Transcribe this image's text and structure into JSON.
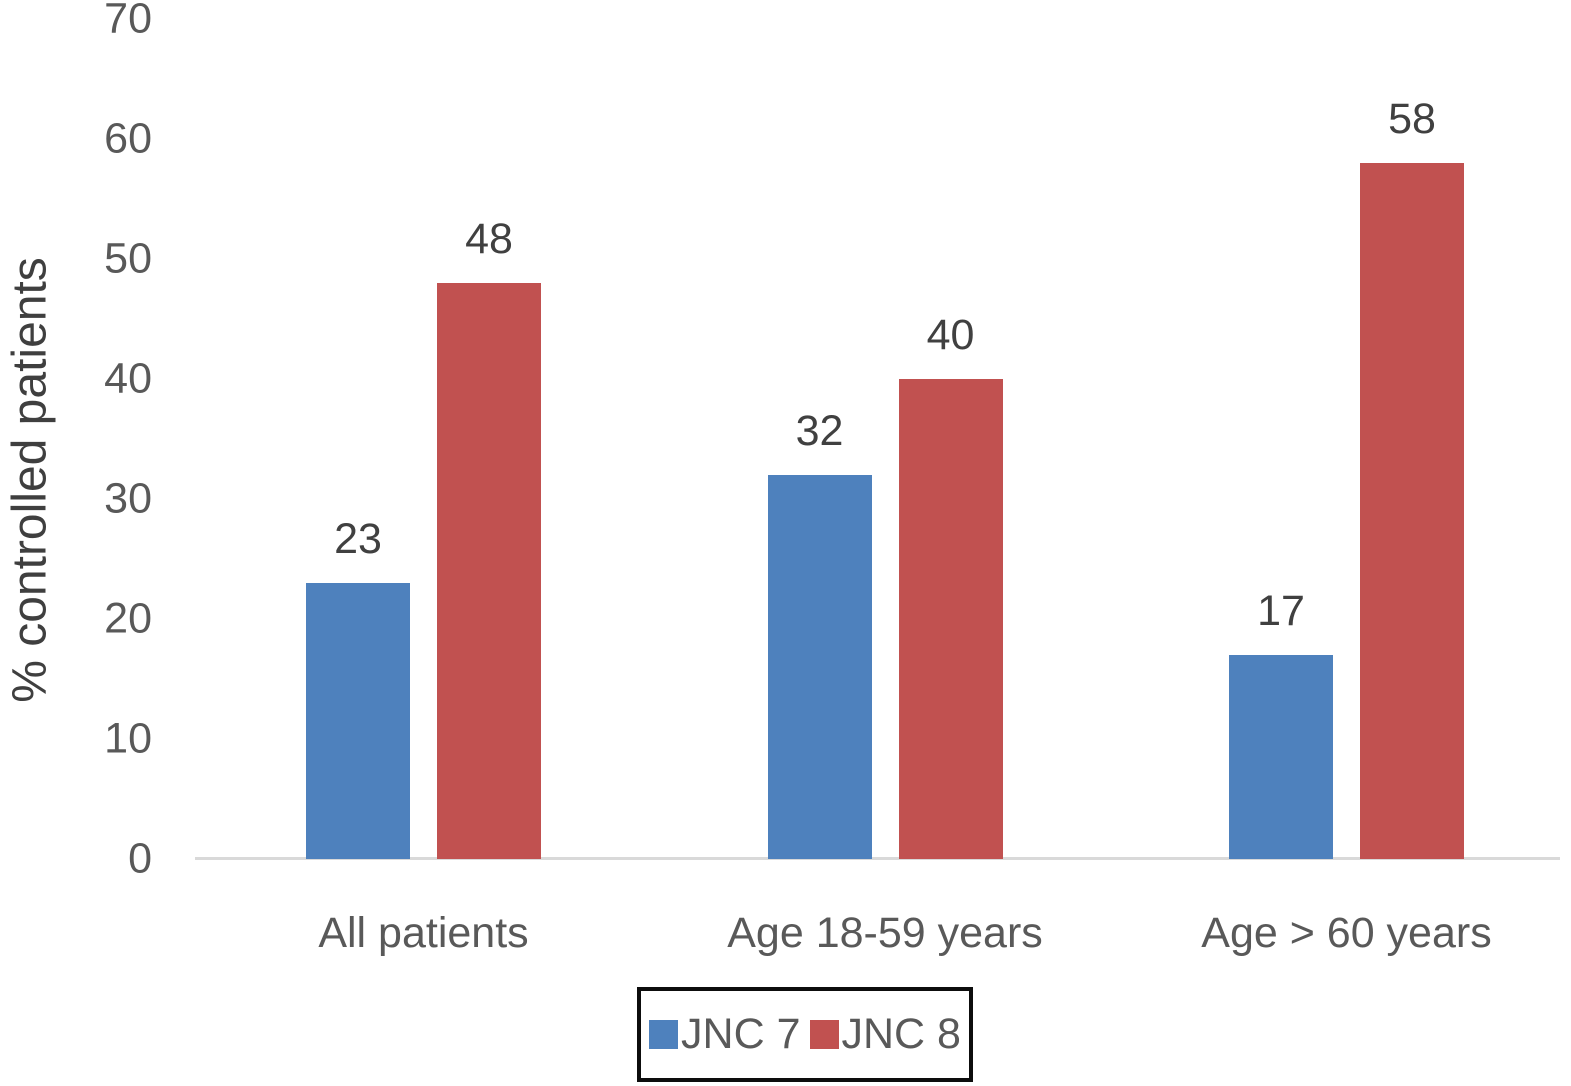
{
  "chart_data": {
    "type": "bar",
    "title": "",
    "xlabel": "",
    "ylabel": "% controlled patients",
    "ylim": [
      0,
      70
    ],
    "yticks": [
      0,
      10,
      20,
      30,
      40,
      50,
      60,
      70
    ],
    "grid": false,
    "legend_position": "bottom-center-boxed",
    "categories": [
      "All patients",
      "Age 18-59 years",
      "Age > 60 years"
    ],
    "series": [
      {
        "name": "JNC 7",
        "color": "#4E81BD",
        "values": [
          23,
          32,
          17
        ]
      },
      {
        "name": "JNC 8",
        "color": "#C15150",
        "values": [
          48,
          40,
          58
        ]
      }
    ],
    "value_labels_shown": true
  },
  "colors": {
    "background": "#FFFFFF",
    "axis_line": "#D9D9D9",
    "tick_text": "#595959",
    "category_text": "#595959",
    "value_text": "#404040",
    "ylabel_text": "#3F3F3F",
    "legend_text": "#595959",
    "legend_border": "#0D0D0D"
  }
}
